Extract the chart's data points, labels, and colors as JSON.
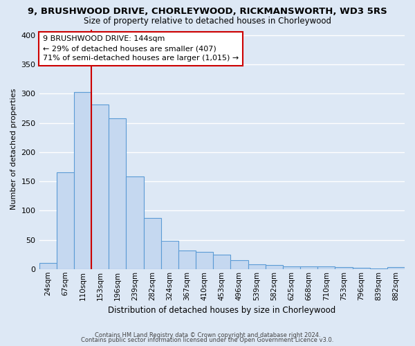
{
  "title": "9, BRUSHWOOD DRIVE, CHORLEYWOOD, RICKMANSWORTH, WD3 5RS",
  "subtitle": "Size of property relative to detached houses in Chorleywood",
  "xlabel": "Distribution of detached houses by size in Chorleywood",
  "ylabel": "Number of detached properties",
  "bar_labels": [
    "24sqm",
    "67sqm",
    "110sqm",
    "153sqm",
    "196sqm",
    "239sqm",
    "282sqm",
    "324sqm",
    "367sqm",
    "410sqm",
    "453sqm",
    "496sqm",
    "539sqm",
    "582sqm",
    "625sqm",
    "668sqm",
    "710sqm",
    "753sqm",
    "796sqm",
    "839sqm",
    "882sqm"
  ],
  "bar_heights": [
    10,
    165,
    303,
    281,
    258,
    158,
    87,
    48,
    32,
    29,
    25,
    15,
    8,
    7,
    5,
    5,
    4,
    3,
    2,
    1,
    3
  ],
  "bar_color": "#c5d8f0",
  "bar_edge_color": "#5b9bd5",
  "vline_x_index": 2,
  "vline_color": "#cc0000",
  "ylim": [
    0,
    410
  ],
  "yticks": [
    0,
    50,
    100,
    150,
    200,
    250,
    300,
    350,
    400
  ],
  "annotation_title": "9 BRUSHWOOD DRIVE: 144sqm",
  "annotation_line1": "← 29% of detached houses are smaller (407)",
  "annotation_line2": "71% of semi-detached houses are larger (1,015) →",
  "annotation_box_color": "#ffffff",
  "annotation_box_edge": "#cc0000",
  "footer1": "Contains HM Land Registry data © Crown copyright and database right 2024.",
  "footer2": "Contains public sector information licensed under the Open Government Licence v3.0.",
  "background_color": "#dde8f5",
  "plot_bg_color": "#dde8f5",
  "grid_color": "#ffffff"
}
